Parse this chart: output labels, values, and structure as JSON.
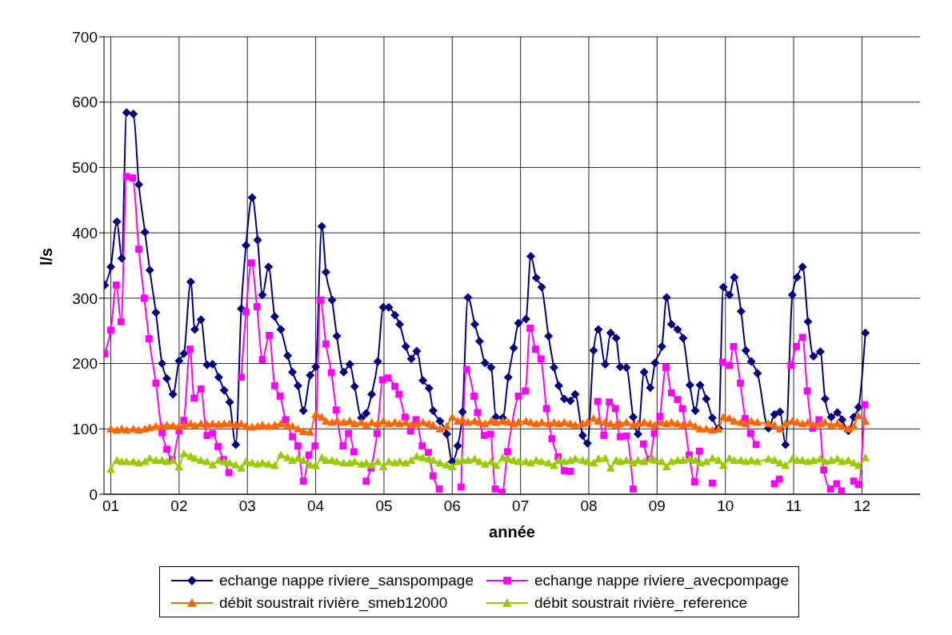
{
  "chart_data": {
    "type": "line",
    "xlabel": "année",
    "ylabel": "l/s",
    "xlim": [
      0.9,
      12.85
    ],
    "ylim": [
      0,
      700
    ],
    "xticks": [
      {
        "value": 1,
        "label": "01"
      },
      {
        "value": 2,
        "label": "02"
      },
      {
        "value": 3,
        "label": "03"
      },
      {
        "value": 4,
        "label": "04"
      },
      {
        "value": 5,
        "label": "05"
      },
      {
        "value": 6,
        "label": "06"
      },
      {
        "value": 7,
        "label": "07"
      },
      {
        "value": 8,
        "label": "08"
      },
      {
        "value": 9,
        "label": "09"
      },
      {
        "value": 10,
        "label": "10"
      },
      {
        "value": 11,
        "label": "11"
      },
      {
        "value": 12,
        "label": "12"
      }
    ],
    "yticks": [
      0,
      100,
      200,
      300,
      400,
      500,
      600,
      700
    ],
    "grid": true,
    "legend": "bottom",
    "line_style": "solid",
    "x": [
      0.91,
      1.0,
      1.09,
      1.16,
      1.23,
      1.33,
      1.41,
      1.5,
      1.57,
      1.66,
      1.75,
      1.82,
      1.91,
      2.0,
      2.07,
      2.17,
      2.23,
      2.32,
      2.41,
      2.49,
      2.58,
      2.66,
      2.74,
      2.83,
      2.91,
      2.98,
      3.07,
      3.15,
      3.22,
      3.31,
      3.4,
      3.49,
      3.59,
      3.66,
      3.74,
      3.82,
      3.92,
      4.0,
      4.09,
      4.15,
      4.24,
      4.31,
      4.41,
      4.5,
      4.57,
      4.67,
      4.74,
      4.82,
      4.91,
      4.99,
      5.07,
      5.16,
      5.23,
      5.32,
      5.4,
      5.48,
      5.57,
      5.66,
      5.72,
      5.82,
      5.92,
      6.0,
      6.08,
      6.15,
      6.23,
      6.33,
      6.4,
      6.48,
      6.57,
      6.64,
      6.74,
      6.82,
      6.9,
      6.97,
      7.08,
      7.15,
      7.23,
      7.31,
      7.41,
      7.49,
      7.56,
      7.64,
      7.73,
      7.8,
      7.91,
      7.98,
      8.07,
      8.14,
      8.24,
      8.32,
      8.4,
      8.46,
      8.55,
      8.65,
      8.72,
      8.81,
      8.9,
      8.97,
      9.07,
      9.14,
      9.21,
      9.3,
      9.38,
      9.48,
      9.56,
      9.63,
      9.72,
      9.81,
      9.9,
      9.97,
      10.06,
      10.13,
      10.23,
      10.3,
      10.38,
      10.47,
      10.63,
      10.72,
      10.8,
      10.88,
      10.98,
      11.05,
      11.13,
      11.21,
      11.29,
      11.39,
      11.46,
      11.55,
      11.64,
      11.71,
      11.8,
      11.88,
      11.95,
      12.05
    ],
    "series": [
      {
        "name": "echange nappe riviere_sanspompage",
        "color": "#000080",
        "marker": "diamond",
        "values": [
          320,
          348,
          417,
          361,
          584,
          582,
          474,
          401,
          343,
          278,
          200,
          177,
          153,
          204,
          215,
          325,
          252,
          267,
          198,
          199,
          179,
          159,
          141,
          76,
          284,
          381,
          454,
          389,
          305,
          348,
          272,
          252,
          212,
          187,
          166,
          128,
          182,
          195,
          410,
          340,
          297,
          242,
          187,
          199,
          165,
          117,
          124,
          153,
          203,
          286,
          286,
          274,
          260,
          226,
          207,
          219,
          174,
          162,
          128,
          112,
          92,
          50,
          74,
          126,
          301,
          260,
          234,
          201,
          194,
          118,
          117,
          179,
          224,
          262,
          268,
          364,
          331,
          317,
          242,
          194,
          166,
          146,
          143,
          153,
          90,
          78,
          220,
          252,
          199,
          247,
          239,
          195,
          194,
          118,
          92,
          187,
          163,
          201,
          226,
          301,
          260,
          252,
          239,
          167,
          128,
          167,
          146,
          117,
          101,
          317,
          305,
          332,
          280,
          220,
          203,
          185,
          101,
          122,
          126,
          76,
          305,
          332,
          348,
          264,
          211,
          218,
          146,
          118,
          125,
          114,
          97,
          118,
          133,
          247
        ]
      },
      {
        "name": "echange nappe riviere_avecpompage",
        "color": "#ff00ff",
        "marker": "square",
        "x": [
          0.91,
          1.0,
          1.08,
          1.15,
          1.23,
          1.32,
          1.41,
          1.49,
          1.56,
          1.66,
          1.75,
          1.82,
          1.9,
          2.0,
          2.07,
          2.16,
          2.22,
          2.32,
          2.41,
          2.49,
          2.57,
          2.65,
          2.73,
          2.81,
          2.91,
          2.98,
          3.06,
          3.14,
          3.22,
          3.32,
          3.4,
          3.48,
          3.56,
          3.66,
          3.74,
          3.82,
          3.9,
          3.99,
          4.07,
          4.15,
          4.23,
          4.3,
          4.4,
          4.48,
          4.56,
          4.65,
          4.74,
          4.81,
          4.9,
          4.98,
          5.06,
          5.16,
          5.22,
          5.31,
          5.39,
          5.47,
          5.56,
          5.65,
          5.72,
          5.81,
          5.92,
          6.13,
          6.21,
          6.32,
          6.37,
          6.47,
          6.56,
          6.63,
          6.73,
          6.81,
          6.97,
          7.07,
          7.14,
          7.22,
          7.3,
          7.38,
          7.46,
          7.55,
          7.64,
          7.73,
          7.9,
          8.13,
          8.22,
          8.3,
          8.39,
          8.46,
          8.55,
          8.65,
          8.72,
          8.8,
          8.89,
          8.96,
          9.04,
          9.13,
          9.21,
          9.3,
          9.37,
          9.47,
          9.55,
          9.62,
          9.71,
          9.81,
          9.88,
          9.96,
          10.06,
          10.12,
          10.22,
          10.29,
          10.37,
          10.45,
          10.65,
          10.72,
          10.79,
          10.87,
          10.96,
          11.04,
          11.13,
          11.2,
          11.28,
          11.37,
          11.44,
          11.54,
          11.63,
          11.7,
          11.78,
          11.88,
          11.95,
          12.04
        ],
        "values": [
          215,
          251,
          320,
          264,
          486,
          484,
          375,
          300,
          238,
          170,
          94,
          69,
          53,
          97,
          113,
          222,
          147,
          161,
          90,
          93,
          73,
          53,
          33,
          null,
          179,
          279,
          354,
          287,
          206,
          243,
          166,
          150,
          114,
          88,
          74,
          20,
          60,
          74,
          297,
          230,
          186,
          129,
          74,
          93,
          65,
          null,
          20,
          40,
          93,
          175,
          178,
          165,
          153,
          118,
          97,
          114,
          74,
          64,
          28,
          8,
          null,
          11,
          191,
          150,
          125,
          90,
          92,
          8,
          3,
          65,
          150,
          158,
          254,
          222,
          207,
          131,
          85,
          57,
          36,
          35,
          null,
          142,
          90,
          141,
          131,
          88,
          89,
          8,
          null,
          77,
          54,
          93,
          119,
          194,
          155,
          145,
          131,
          60,
          19,
          66,
          null,
          17,
          null,
          202,
          197,
          226,
          170,
          116,
          93,
          76,
          null,
          16,
          23,
          null,
          197,
          226,
          240,
          158,
          101,
          114,
          37,
          8,
          16,
          5,
          null,
          20,
          15,
          137
        ]
      },
      {
        "name": "débit soustrait rivière_smeb12000",
        "color": "#ff6600",
        "marker": "triangle",
        "values": [
          null,
          100,
          98,
          100,
          98,
          100,
          98,
          100,
          102,
          104,
          104,
          106,
          105,
          104,
          106,
          108,
          105,
          108,
          107,
          108,
          107,
          108,
          108,
          106,
          108,
          104,
          103,
          104,
          106,
          104,
          106,
          108,
          106,
          104,
          100,
          96,
          95,
          122,
          118,
          112,
          110,
          112,
          110,
          112,
          108,
          110,
          106,
          110,
          108,
          112,
          108,
          110,
          108,
          110,
          106,
          108,
          110,
          108,
          106,
          100,
          104,
          118,
          112,
          114,
          110,
          112,
          110,
          108,
          112,
          110,
          112,
          110,
          108,
          110,
          112,
          110,
          108,
          110,
          108,
          110,
          108,
          110,
          108,
          106,
          108,
          110,
          116,
          112,
          110,
          108,
          106,
          108,
          110,
          106,
          108,
          110,
          108,
          106,
          110,
          108,
          110,
          108,
          106,
          108,
          104,
          100,
          100,
          98,
          100,
          118,
          116,
          112,
          110,
          108,
          112,
          110,
          108,
          106,
          100,
          108,
          112,
          110,
          108,
          110,
          106,
          108,
          110,
          106,
          108,
          104,
          100,
          104,
          120,
          112
        ]
      },
      {
        "name": "débit soustrait rivière_reference",
        "color": "#99cc00",
        "marker": "triangle",
        "values": [
          null,
          38,
          52,
          50,
          50,
          50,
          48,
          50,
          55,
          52,
          52,
          50,
          52,
          42,
          62,
          58,
          55,
          52,
          50,
          45,
          52,
          50,
          48,
          45,
          40,
          50,
          48,
          46,
          48,
          46,
          44,
          60,
          56,
          52,
          55,
          52,
          45,
          44,
          56,
          52,
          52,
          50,
          48,
          48,
          50,
          46,
          48,
          45,
          50,
          42,
          50,
          48,
          50,
          48,
          52,
          58,
          56,
          54,
          52,
          48,
          45,
          42,
          50,
          52,
          52,
          54,
          50,
          46,
          50,
          44,
          56,
          54,
          52,
          50,
          50,
          48,
          52,
          50,
          48,
          44,
          52,
          50,
          52,
          54,
          52,
          50,
          48,
          54,
          55,
          40,
          52,
          50,
          52,
          48,
          52,
          50,
          54,
          52,
          50,
          42,
          50,
          52,
          52,
          54,
          52,
          48,
          50,
          55,
          52,
          44,
          55,
          52,
          52,
          50,
          52,
          50,
          54,
          52,
          48,
          44,
          54,
          52,
          52,
          50,
          52,
          54,
          50,
          52,
          54,
          50,
          52,
          48,
          44,
          56
        ]
      }
    ]
  }
}
